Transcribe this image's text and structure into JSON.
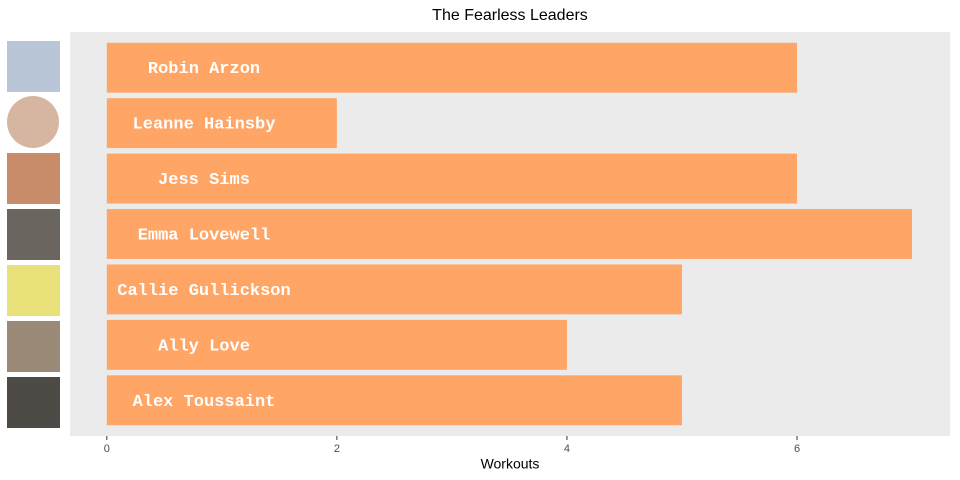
{
  "chart_data": {
    "type": "bar",
    "orientation": "horizontal",
    "title": "The Fearless Leaders",
    "x_label": "Workouts",
    "categories": [
      "Robin Arzon",
      "Leanne Hainsby",
      "Jess Sims",
      "Emma Lovewell",
      "Callie Gullickson",
      "Ally Love",
      "Alex Toussaint"
    ],
    "values": [
      6,
      2,
      6,
      7,
      5,
      4,
      5
    ],
    "color": "#ffa566",
    "xlim": [
      -0.32,
      7.33
    ],
    "xticks": [
      0,
      2,
      4,
      6
    ],
    "grid": false
  }
}
